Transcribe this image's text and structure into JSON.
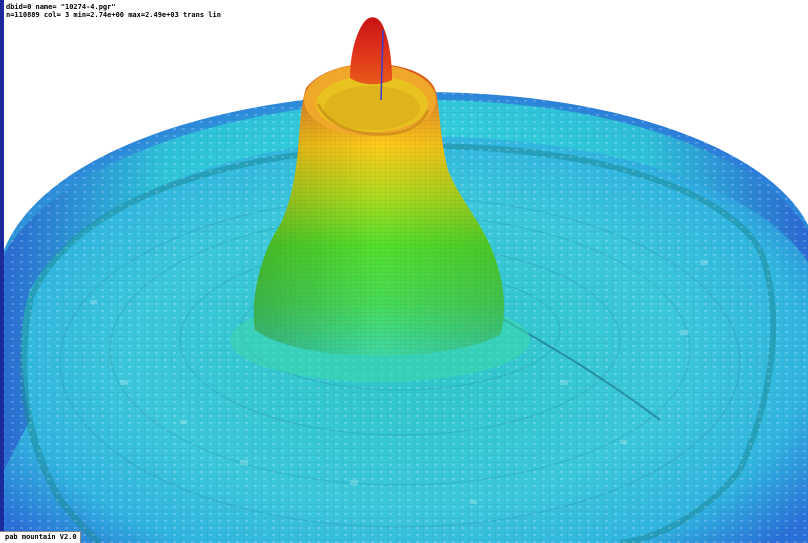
{
  "window": {
    "info_line_1": "dbid=0 name= \"10274-4.pgr\"",
    "info_line_2": "n=110889 col= 3 min=2.74e+00 max=2.49e+03 trans lin",
    "footer_label": "pab mountain V2.0"
  },
  "colors": {
    "background": "#ffffff",
    "border": "#1a2a9a",
    "low": "#2a5fd8",
    "mid_low": "#2ad8e0",
    "mid": "#3ae08a",
    "mid_high": "#ffd21a",
    "high": "#e02a1a"
  }
}
